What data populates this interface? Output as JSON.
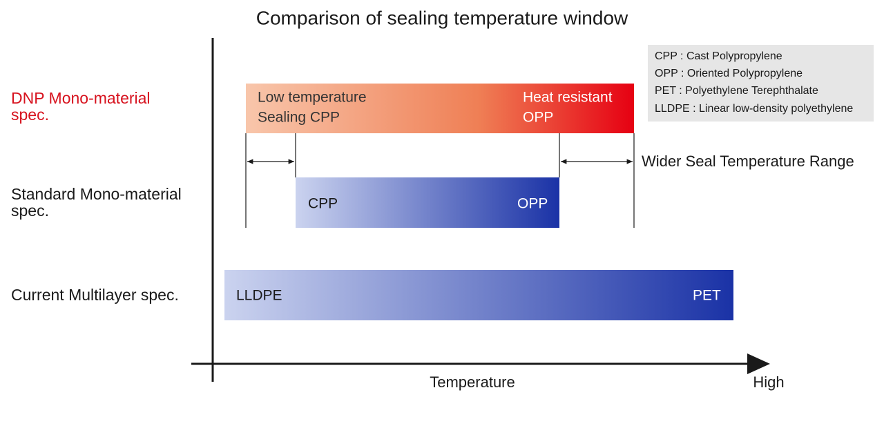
{
  "title": "Comparison of sealing temperature window",
  "legend": [
    "CPP : Cast Polypropylene",
    "OPP : Oriented Polypropylene",
    "PET : Polyethylene Terephthalate",
    "LLDPE : Linear low-density polyethylene"
  ],
  "rows": [
    {
      "label": [
        "DNP Mono-material",
        "spec."
      ],
      "left": [
        "Low temperature",
        "Sealing CPP"
      ],
      "right": [
        "Heat resistant",
        "OPP"
      ]
    },
    {
      "label": [
        "Standard Mono-material",
        "spec."
      ],
      "left": [
        "CPP"
      ],
      "right": [
        "OPP"
      ]
    },
    {
      "label": [
        "Current Multilayer spec."
      ],
      "left": [
        "LLDPE"
      ],
      "right": [
        "PET"
      ]
    }
  ],
  "annotation": "Wider Seal Temperature Range",
  "x_axis": {
    "label": "Temperature",
    "end_label": "High"
  }
}
